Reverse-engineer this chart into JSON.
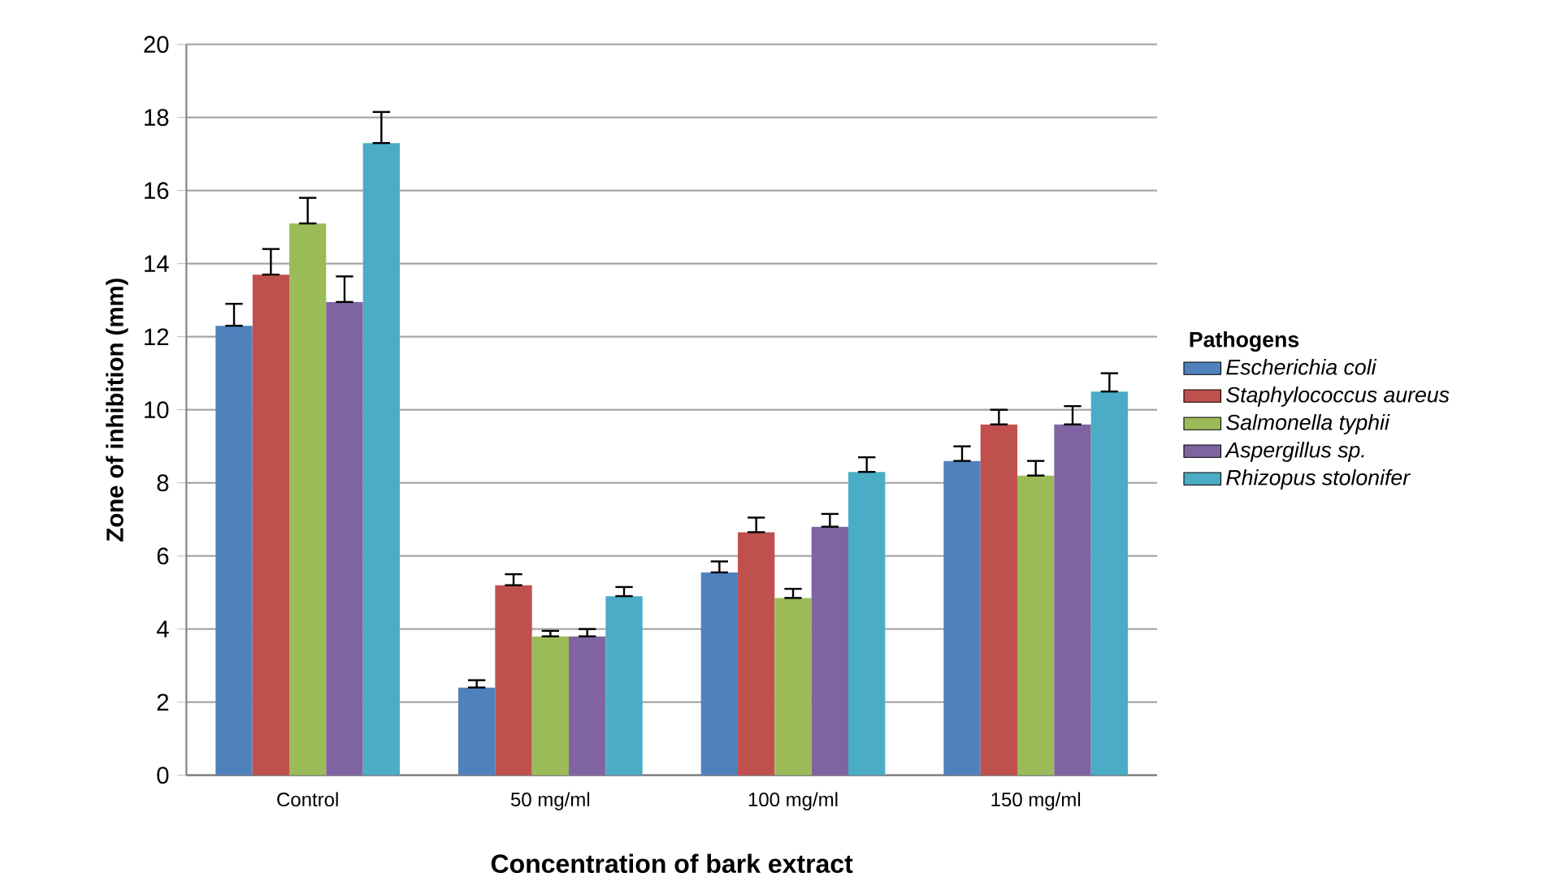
{
  "chart_data": {
    "type": "bar",
    "xlabel": "Concentration of bark extract",
    "ylabel": "Zone of inhibition (mm)",
    "legend_title": "Pathogens",
    "categories": [
      "Control",
      "50 mg/ml",
      "100 mg/ml",
      "150 mg/ml"
    ],
    "series": [
      {
        "name": "Escherichia  coli",
        "color": "#4f81bd",
        "values": [
          12.3,
          2.4,
          5.55,
          8.6
        ],
        "errors": [
          [
            12.3,
            12.9
          ],
          [
            2.4,
            2.6
          ],
          [
            5.55,
            5.85
          ],
          [
            8.6,
            9.0
          ]
        ]
      },
      {
        "name": "Staphylococcus aureus",
        "color": "#c0504d",
        "values": [
          13.7,
          5.2,
          6.65,
          9.6
        ],
        "errors": [
          [
            13.7,
            14.4
          ],
          [
            5.2,
            5.5
          ],
          [
            6.65,
            7.05
          ],
          [
            9.6,
            10.0
          ]
        ]
      },
      {
        "name": "Salmonella typhii",
        "color": "#9bbb59",
        "values": [
          15.1,
          3.8,
          4.85,
          8.2
        ],
        "errors": [
          [
            15.1,
            15.8
          ],
          [
            3.8,
            3.95
          ],
          [
            4.85,
            5.1
          ],
          [
            8.2,
            8.6
          ]
        ]
      },
      {
        "name": "Aspergillus sp.",
        "color": "#8064a2",
        "values": [
          12.95,
          3.8,
          6.8,
          9.6
        ],
        "errors": [
          [
            12.95,
            13.65
          ],
          [
            3.8,
            4.0
          ],
          [
            6.8,
            7.15
          ],
          [
            9.6,
            10.1
          ]
        ]
      },
      {
        "name": "Rhizopus stolonifer",
        "color": "#4bacc6",
        "values": [
          17.3,
          4.9,
          8.3,
          10.5
        ],
        "errors": [
          [
            17.3,
            18.15
          ],
          [
            4.9,
            5.15
          ],
          [
            8.3,
            8.7
          ],
          [
            10.5,
            11.0
          ]
        ]
      }
    ],
    "ylim": [
      0,
      20
    ],
    "yticks": [
      0,
      2,
      4,
      6,
      8,
      10,
      12,
      14,
      16,
      18,
      20
    ],
    "grid": "y",
    "legend": "right"
  }
}
